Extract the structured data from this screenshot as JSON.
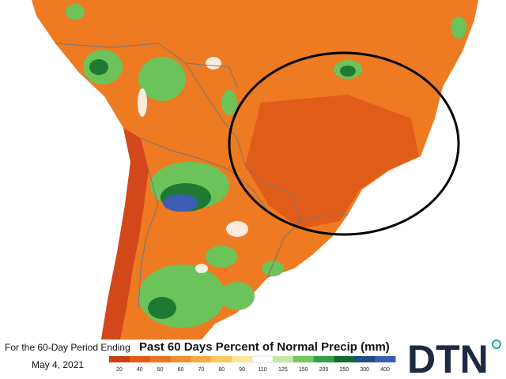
{
  "caption": {
    "period_line": "For the 60-Day Period Ending",
    "date": "May 4, 2021"
  },
  "title": "Past 60 Days Percent of Normal Precip (mm)",
  "legend": {
    "ticks": [
      20,
      40,
      50,
      60,
      70,
      80,
      90,
      110,
      125,
      150,
      200,
      250,
      300,
      400
    ],
    "colors": [
      "#c9410f",
      "#e25a16",
      "#ec7420",
      "#f28f2c",
      "#f6a93c",
      "#f9c75e",
      "#fce79a",
      "#ffffff",
      "#bfe7a6",
      "#74c75c",
      "#35a043",
      "#146b2e",
      "#1f4f86",
      "#3d5db5"
    ]
  },
  "logo": "DTN"
}
